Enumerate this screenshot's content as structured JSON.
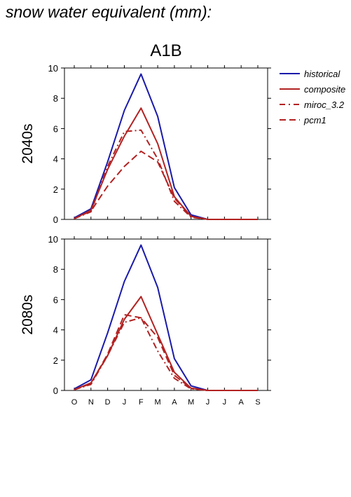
{
  "title": "snow water equivalent (mm):",
  "scenario": "A1B",
  "colors": {
    "historical": "#1a1aaa",
    "future": "#b22222",
    "axis": "#000000"
  },
  "chart_data": {
    "type": "line",
    "x": [
      "O",
      "N",
      "D",
      "J",
      "F",
      "M",
      "A",
      "M",
      "J",
      "J",
      "A",
      "S"
    ],
    "ylim": [
      0,
      10
    ],
    "yticks": [
      "0",
      "2",
      "4",
      "6",
      "8",
      "10"
    ],
    "legend": {
      "placement": "right",
      "entries": [
        {
          "name": "historical",
          "style": "solid",
          "color": "historical"
        },
        {
          "name": "composite",
          "style": "solid",
          "color": "future"
        },
        {
          "name": "miroc_3.2",
          "style": "dashdot",
          "color": "future"
        },
        {
          "name": "pcm1",
          "style": "dashed",
          "color": "future"
        }
      ]
    },
    "panels": [
      {
        "label": "2040s",
        "series": [
          {
            "name": "historical",
            "values": [
              0.1,
              0.7,
              3.8,
              7.2,
              9.6,
              6.8,
              2.1,
              0.3,
              0,
              0,
              0,
              0
            ]
          },
          {
            "name": "composite",
            "values": [
              0.05,
              0.6,
              3.3,
              5.5,
              7.35,
              5.0,
              1.5,
              0.2,
              0,
              0,
              0,
              0
            ]
          },
          {
            "name": "miroc_3.2",
            "values": [
              0.05,
              0.5,
              3.5,
              5.8,
              5.9,
              4.0,
              1.2,
              0.15,
              0,
              0,
              0,
              0
            ]
          },
          {
            "name": "pcm1",
            "values": [
              0.05,
              0.55,
              2.2,
              3.5,
              4.5,
              3.8,
              1.4,
              0.2,
              0,
              0,
              0,
              0
            ]
          }
        ]
      },
      {
        "label": "2080s",
        "series": [
          {
            "name": "historical",
            "values": [
              0.1,
              0.7,
              3.8,
              7.2,
              9.6,
              6.8,
              2.1,
              0.3,
              0,
              0,
              0,
              0
            ]
          },
          {
            "name": "composite",
            "values": [
              0.05,
              0.5,
              2.3,
              4.7,
              6.2,
              3.7,
              1.2,
              0.15,
              0,
              0,
              0,
              0
            ]
          },
          {
            "name": "miroc_3.2",
            "values": [
              0.05,
              0.4,
              2.3,
              4.5,
              4.8,
              2.6,
              0.8,
              0.1,
              0,
              0,
              0,
              0
            ]
          },
          {
            "name": "pcm1",
            "values": [
              0.05,
              0.45,
              2.4,
              5.0,
              4.8,
              3.5,
              1.0,
              0.15,
              0,
              0,
              0,
              0
            ]
          }
        ]
      }
    ]
  }
}
